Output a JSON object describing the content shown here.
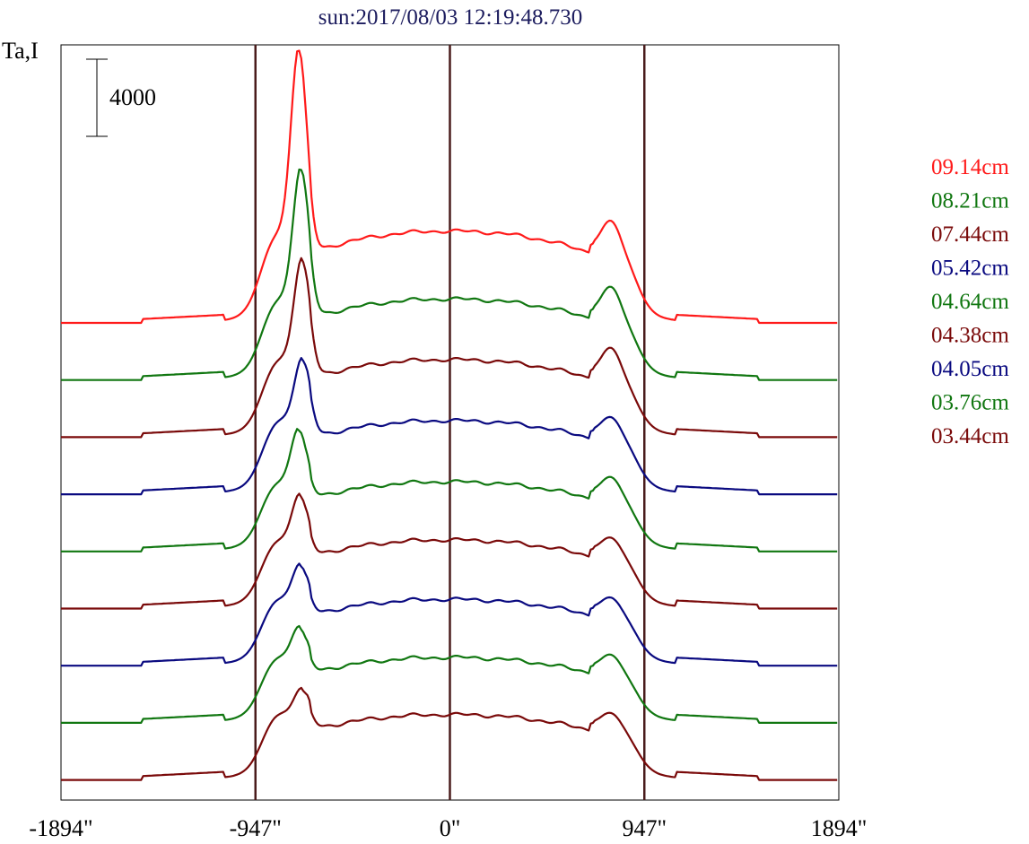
{
  "chart_data": {
    "type": "line",
    "title": "sun:2017/08/03 12:19:48.730",
    "title_color": "#1c1c5e",
    "ylabel": "Ta,I",
    "scale_bar_label": "4000",
    "scale_bar_value": 4000,
    "xlim": [
      -1894,
      1894
    ],
    "x_ticks": [
      -1894,
      -947,
      0,
      947,
      1894
    ],
    "x_tick_labels": [
      "-1894\"",
      "-947\"",
      "0\"",
      "947\"",
      "1894\""
    ],
    "x_markers": [
      -947,
      0,
      947
    ],
    "marker_color": "#4a1c1c",
    "grid": false,
    "legend_position": "right",
    "series": [
      {
        "name": "09.14cm",
        "color": "#ff1a1a",
        "baseline": 0,
        "disk": 4760,
        "limb_peak": 14930,
        "limb_shoulder": 4180,
        "peak_x": -735,
        "right_bump": 4900
      },
      {
        "name": "08.21cm",
        "color": "#117711",
        "baseline": 0,
        "disk": 4200,
        "limb_peak": 11560,
        "limb_shoulder": 3690,
        "peak_x": -725,
        "right_bump": 4450
      },
      {
        "name": "07.44cm",
        "color": "#7a0a0a",
        "baseline": 0,
        "disk": 4020,
        "limb_peak": 9740,
        "limb_shoulder": 3490,
        "peak_x": -720,
        "right_bump": 4250
      },
      {
        "name": "05.42cm",
        "color": "#0a0a80",
        "baseline": 0,
        "disk": 3820,
        "limb_peak": 7490,
        "limb_shoulder": 3320,
        "peak_x": -718,
        "right_bump": 3620
      },
      {
        "name": "04.64cm",
        "color": "#117711",
        "baseline": 0,
        "disk": 3610,
        "limb_peak": 6790,
        "limb_shoulder": 3120,
        "peak_x": -735,
        "right_bump": 3480
      },
      {
        "name": "04.38cm",
        "color": "#7a0a0a",
        "baseline": 0,
        "disk": 3560,
        "limb_peak": 6320,
        "limb_shoulder": 3080,
        "peak_x": -730,
        "right_bump": 3300
      },
      {
        "name": "04.05cm",
        "color": "#0a0a80",
        "baseline": 0,
        "disk": 3440,
        "limb_peak": 5630,
        "limb_shoulder": 3040,
        "peak_x": -728,
        "right_bump": 3160
      },
      {
        "name": "03.76cm",
        "color": "#117711",
        "baseline": 0,
        "disk": 3390,
        "limb_peak": 5340,
        "limb_shoulder": 2990,
        "peak_x": -732,
        "right_bump": 3160
      },
      {
        "name": "03.44cm",
        "color": "#7a0a0a",
        "baseline": 0,
        "disk": 3390,
        "limb_peak": 5090,
        "limb_shoulder": 2920,
        "peak_x": -720,
        "right_bump": 3100
      }
    ]
  }
}
